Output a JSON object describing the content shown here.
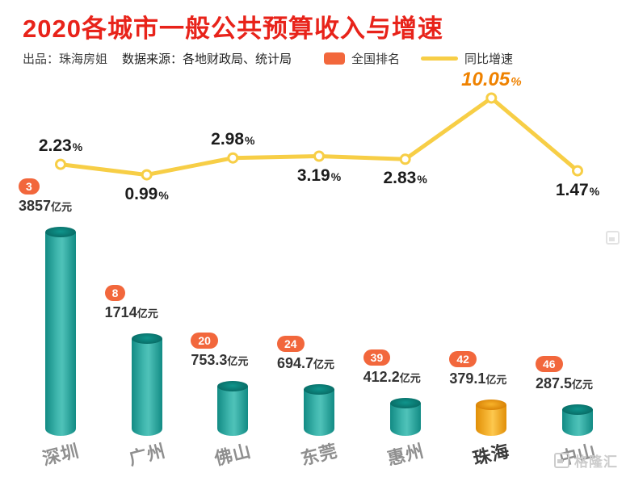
{
  "header": {
    "title": "2020各城市一般公共预算收入与增速",
    "credit": "出品：珠海房姐",
    "source": "数据来源：各地财政局、统计局",
    "legend_rank": "全国排名",
    "legend_growth": "同比增速"
  },
  "watermark": {
    "text": "格隆汇"
  },
  "chart_data": {
    "type": "combo",
    "title": "2020各城市一般公共预算收入与增速",
    "categories": [
      "深圳",
      "广州",
      "佛山",
      "东莞",
      "惠州",
      "珠海",
      "中山"
    ],
    "series": [
      {
        "name": "全国排名",
        "type": "rank",
        "values": [
          3,
          8,
          20,
          24,
          39,
          42,
          46
        ]
      },
      {
        "name": "一般公共预算收入",
        "type": "bar",
        "unit": "亿元",
        "values": [
          3857,
          1714,
          753.3,
          694.7,
          412.2,
          379.1,
          287.5
        ]
      },
      {
        "name": "同比增速",
        "type": "line",
        "unit": "%",
        "values": [
          2.23,
          0.99,
          2.98,
          3.19,
          2.83,
          10.05,
          1.47
        ]
      }
    ],
    "highlight_index": 5,
    "legend_position": "top",
    "grid": false
  },
  "cities": [
    {
      "name": "深圳",
      "rank": "3",
      "revenue": "3857",
      "unit": "亿元",
      "growth": "2.23",
      "pct_pos": "above",
      "highlight": false
    },
    {
      "name": "广州",
      "rank": "8",
      "revenue": "1714",
      "unit": "亿元",
      "growth": "0.99",
      "pct_pos": "below",
      "highlight": false
    },
    {
      "name": "佛山",
      "rank": "20",
      "revenue": "753.3",
      "unit": "亿元",
      "growth": "2.98",
      "pct_pos": "above",
      "highlight": false
    },
    {
      "name": "东莞",
      "rank": "24",
      "revenue": "694.7",
      "unit": "亿元",
      "growth": "3.19",
      "pct_pos": "below",
      "highlight": false
    },
    {
      "name": "惠州",
      "rank": "39",
      "revenue": "412.2",
      "unit": "亿元",
      "growth": "2.83",
      "pct_pos": "below",
      "highlight": false
    },
    {
      "name": "珠海",
      "rank": "42",
      "revenue": "379.1",
      "unit": "亿元",
      "growth": "10.05",
      "pct_pos": "above",
      "highlight": true
    },
    {
      "name": "中山",
      "rank": "46",
      "revenue": "287.5",
      "unit": "亿元",
      "growth": "1.47",
      "pct_pos": "below",
      "highlight": false
    }
  ],
  "colors": {
    "title": "#e8231a",
    "bar": "#1f9e96",
    "bar_highlight": "#f6a51f",
    "line": "#f7ce46",
    "rank_badge": "#f2673c",
    "growth_highlight": "#ef8200"
  }
}
